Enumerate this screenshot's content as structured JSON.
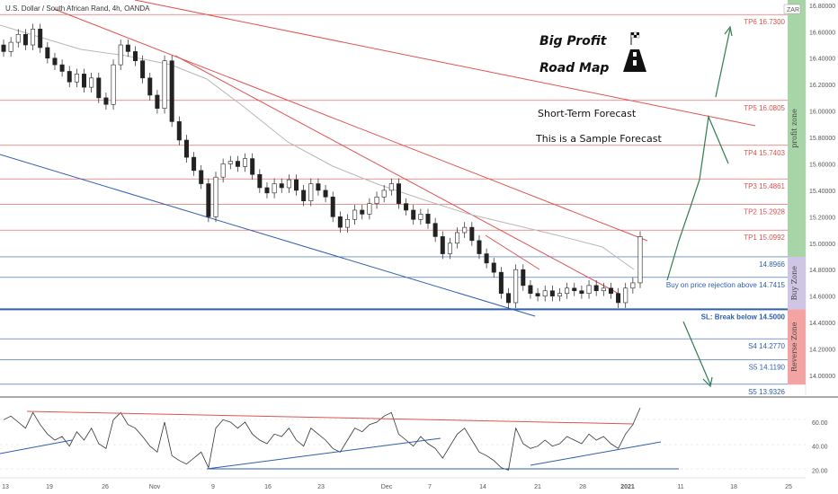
{
  "chart_data": {
    "type": "candlestick",
    "title": "U.S. Dollar / South African Rand, 4h, OANDA",
    "currency_badge": "ZAR",
    "annotations": {
      "heading_line1": "Big Profit",
      "heading_line2": "Road Map",
      "forecast_title": "Short-Term Forecast",
      "forecast_subtitle": "This is a Sample Forecast"
    },
    "price_axis": {
      "ylim": [
        13.85,
        16.84
      ],
      "ticks": [
        "16.80000",
        "16.60000",
        "16.40000",
        "16.20000",
        "16.00000",
        "15.80000",
        "15.60000",
        "15.40000",
        "15.20000",
        "15.00000",
        "14.80000",
        "14.60000",
        "14.40000",
        "14.20000",
        "14.00000"
      ]
    },
    "x_axis": {
      "labels": [
        "13",
        "19",
        "26",
        "Nov",
        "9",
        "16",
        "23",
        "Dec",
        "7",
        "14",
        "21",
        "28",
        "2021",
        "11",
        "18",
        "25"
      ]
    },
    "levels": [
      {
        "label": "TP6 16.7300",
        "value": 16.73,
        "color": "#d9534f"
      },
      {
        "label": "TP5 16.0805",
        "value": 16.0805,
        "color": "#d9534f"
      },
      {
        "label": "TP4 15.7403",
        "value": 15.7403,
        "color": "#d9534f"
      },
      {
        "label": "TP3 15.4861",
        "value": 15.4861,
        "color": "#d9534f"
      },
      {
        "label": "TP2 15.2928",
        "value": 15.2928,
        "color": "#d9534f"
      },
      {
        "label": "TP1 15.0992",
        "value": 15.0992,
        "color": "#d9534f"
      },
      {
        "label": "14.8966",
        "value": 14.8966,
        "color": "#2f5fae"
      },
      {
        "label": "Buy on price rejection above 14.7415",
        "value": 14.7415,
        "color": "#2f5fae"
      },
      {
        "label": "SL: Break below 14.5000",
        "value": 14.5,
        "color": "#2f5fae"
      },
      {
        "label": "S4 14.2770",
        "value": 14.277,
        "color": "#2f5fae"
      },
      {
        "label": "S5 14.1190",
        "value": 14.119,
        "color": "#2f5fae"
      },
      {
        "label": "S5 13.9326",
        "value": 13.9326,
        "color": "#2f5fae"
      }
    ],
    "zones": [
      {
        "label": "profit zone",
        "from": 14.8966,
        "to": 16.84,
        "color": "#a8d5a8"
      },
      {
        "label": "Buy Zone",
        "from": 14.5,
        "to": 14.8966,
        "color": "#cfc6e6"
      },
      {
        "label": "Reverse Zone",
        "from": 13.93,
        "to": 14.5,
        "color": "#f4a3a3"
      }
    ],
    "series": [
      {
        "name": "",
        "type": "candlestick",
        "close": [
          16.45,
          16.52,
          16.58,
          16.5,
          16.62,
          16.48,
          16.4,
          16.35,
          16.3,
          16.22,
          16.28,
          16.18,
          16.25,
          16.1,
          16.05,
          16.35,
          16.5,
          16.45,
          16.38,
          16.25,
          16.12,
          16.02,
          16.38,
          15.92,
          15.78,
          15.65,
          15.55,
          15.45,
          15.2,
          15.5,
          15.6,
          15.62,
          15.58,
          15.64,
          15.52,
          15.42,
          15.38,
          15.45,
          15.42,
          15.48,
          15.4,
          15.32,
          15.45,
          15.4,
          15.35,
          15.2,
          15.12,
          15.18,
          15.25,
          15.22,
          15.3,
          15.35,
          15.4,
          15.45,
          15.3,
          15.25,
          15.18,
          15.22,
          15.15,
          15.05,
          14.92,
          15.0,
          15.08,
          15.12,
          15.02,
          14.92,
          14.85,
          14.78,
          14.62,
          14.55,
          14.8,
          14.68,
          14.62,
          14.6,
          14.64,
          14.6,
          14.62,
          14.66,
          14.64,
          14.62,
          14.68,
          14.64,
          14.66,
          14.62,
          14.55,
          14.66,
          14.7,
          15.05
        ]
      },
      {
        "name": "",
        "type": "oscillator",
        "values": [
          62,
          65,
          60,
          55,
          68,
          58,
          50,
          45,
          48,
          40,
          52,
          45,
          55,
          42,
          38,
          62,
          68,
          58,
          55,
          48,
          40,
          35,
          60,
          32,
          28,
          25,
          30,
          35,
          22,
          55,
          62,
          60,
          55,
          60,
          50,
          45,
          42,
          50,
          48,
          55,
          45,
          40,
          55,
          50,
          45,
          38,
          35,
          45,
          55,
          52,
          58,
          60,
          65,
          68,
          50,
          45,
          40,
          48,
          42,
          38,
          30,
          40,
          50,
          55,
          45,
          35,
          32,
          28,
          22,
          20,
          55,
          42,
          38,
          40,
          45,
          40,
          42,
          48,
          45,
          42,
          50,
          45,
          48,
          42,
          38,
          50,
          58,
          72
        ]
      }
    ],
    "oscillator_axis": {
      "ylim": [
        15,
        78
      ],
      "ticks": [
        "60.00",
        "40.00",
        "20.00"
      ]
    }
  }
}
